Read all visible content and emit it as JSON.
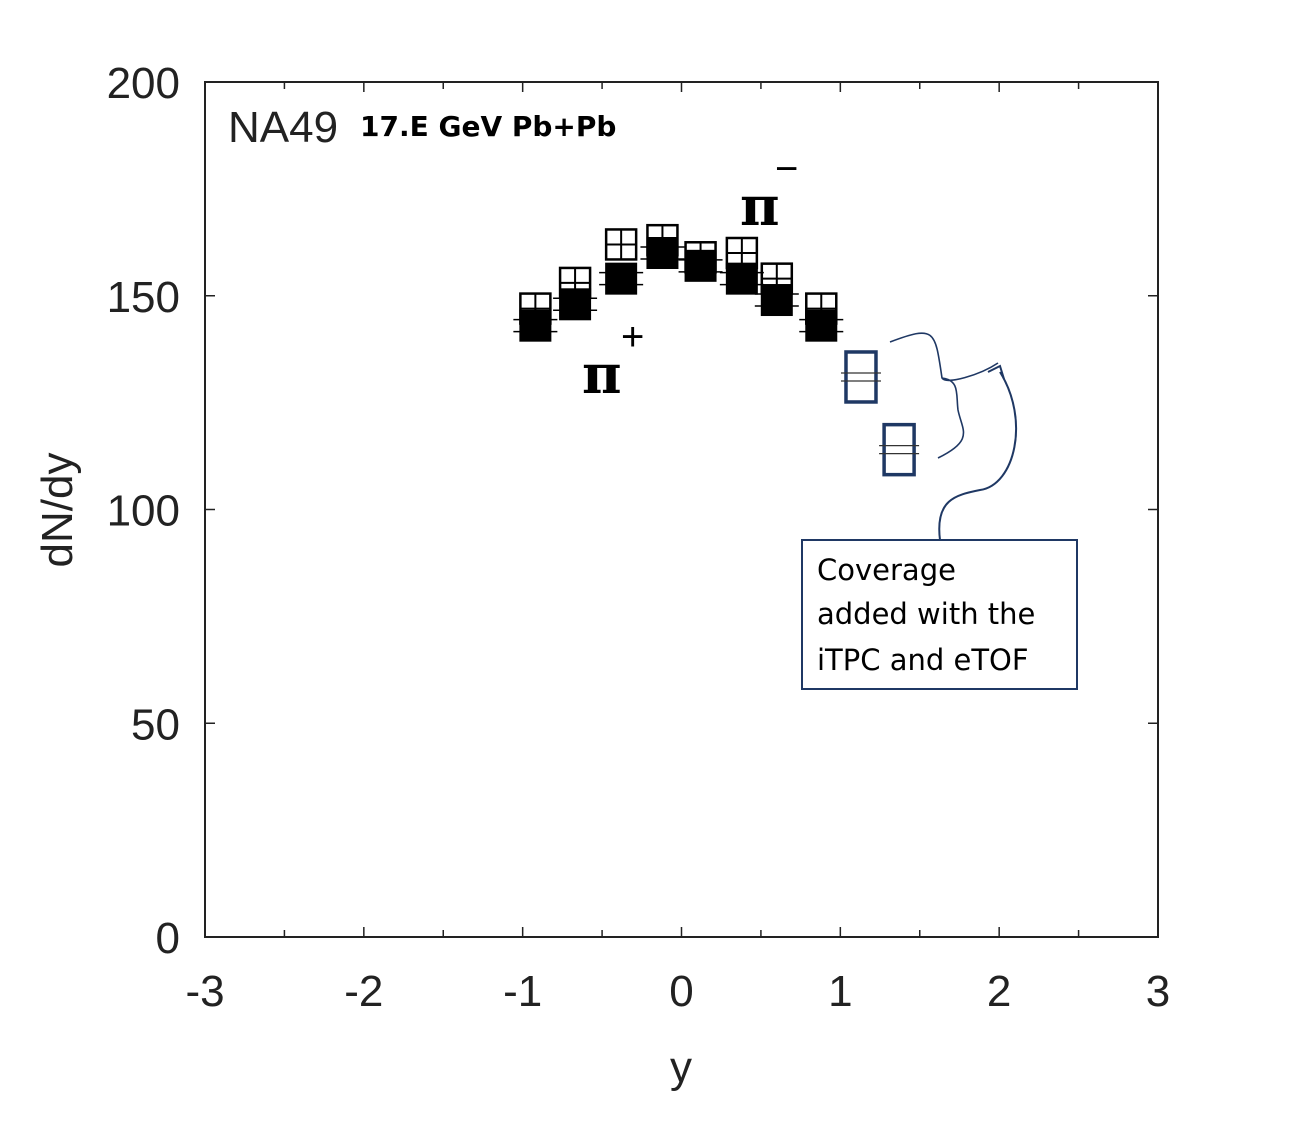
{
  "chart_data": {
    "type": "scatter",
    "title": "NA49",
    "subtitle": "17.E GeV Pb+Pb",
    "xlabel": "y",
    "ylabel": "dN/dy",
    "xlim": [
      -3,
      3
    ],
    "ylim": [
      0,
      200
    ],
    "xticks": [
      "-3",
      "-2",
      "-1",
      "0",
      "1",
      "2",
      "3"
    ],
    "yticks": [
      "0",
      "50",
      "100",
      "150",
      "200"
    ],
    "grid": false,
    "series": [
      {
        "name": "π+",
        "label_text": "π",
        "label_sign": "+",
        "marker": "filled-square",
        "x": [
          -0.92,
          -0.67,
          -0.38,
          -0.12,
          0.12,
          0.38,
          0.6,
          0.88
        ],
        "values": [
          143,
          148,
          154,
          160,
          157,
          154,
          149,
          143
        ]
      },
      {
        "name": "π−",
        "label_text": "π",
        "label_sign": "−",
        "marker": "open-square",
        "x": [
          -0.92,
          -0.67,
          -0.38,
          -0.12,
          0.12,
          0.38,
          0.6,
          0.88
        ],
        "values": [
          147,
          153,
          162,
          163,
          159,
          160,
          154,
          147
        ]
      },
      {
        "name": "added coverage",
        "marker": "open-square-blue",
        "color": "#1f3864",
        "x": [
          1.13,
          1.37
        ],
        "values": [
          131,
          114
        ]
      }
    ],
    "annotation": {
      "lines": [
        "Coverage",
        "added with the",
        "iTPC and eTOF"
      ],
      "border_color": "#1f3864"
    }
  }
}
